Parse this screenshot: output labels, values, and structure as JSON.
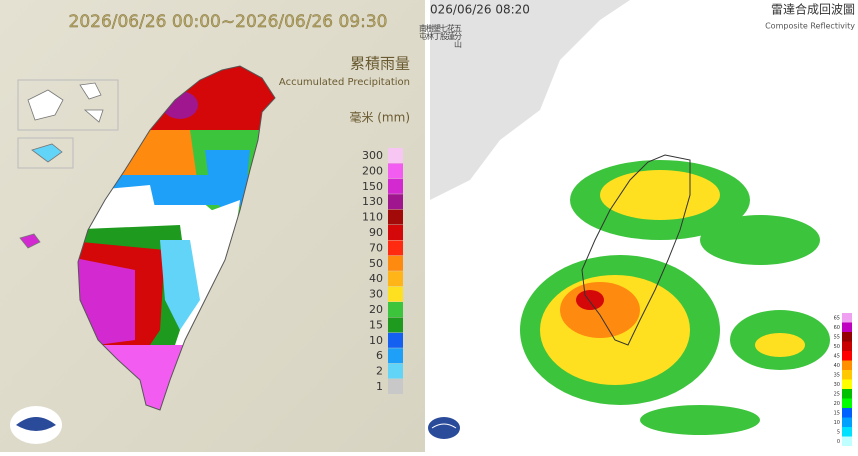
{
  "left_map": {
    "period": "2026/06/26 00:00~2026/06/26 09:30",
    "title_zh": "累積雨量",
    "title_en": "Accumulated Precipitation",
    "unit": "毫米 (mm)",
    "legend": [
      {
        "label": "300",
        "color": "#f7c6f2"
      },
      {
        "label": "200",
        "color": "#f25cf0"
      },
      {
        "label": "150",
        "color": "#d22ad0"
      },
      {
        "label": "130",
        "color": "#a0168e"
      },
      {
        "label": "110",
        "color": "#a20a0a"
      },
      {
        "label": "90",
        "color": "#d40808"
      },
      {
        "label": "70",
        "color": "#ff2a10"
      },
      {
        "label": "50",
        "color": "#ff8a10"
      },
      {
        "label": "40",
        "color": "#ffb418"
      },
      {
        "label": "30",
        "color": "#ffe020"
      },
      {
        "label": "20",
        "color": "#3cc43c"
      },
      {
        "label": "15",
        "color": "#1e9a1e"
      },
      {
        "label": "10",
        "color": "#1460f0"
      },
      {
        "label": "6",
        "color": "#1ea0f8"
      },
      {
        "label": "2",
        "color": "#62d4f8"
      },
      {
        "label": "1",
        "color": "#c8c8c8"
      }
    ]
  },
  "right_map": {
    "time": "026/06/26 08:20",
    "title_zh": "雷達合成回波圖",
    "title_en": "Composite Reflectivity",
    "stations": [
      "五分山",
      "花蓮",
      "七股",
      "墾丁",
      "樹林",
      "南屯"
    ],
    "scale": [
      "65",
      "60",
      "55",
      "50",
      "45",
      "40",
      "35",
      "30",
      "25",
      "20",
      "15",
      "10",
      "5",
      "0"
    ]
  }
}
